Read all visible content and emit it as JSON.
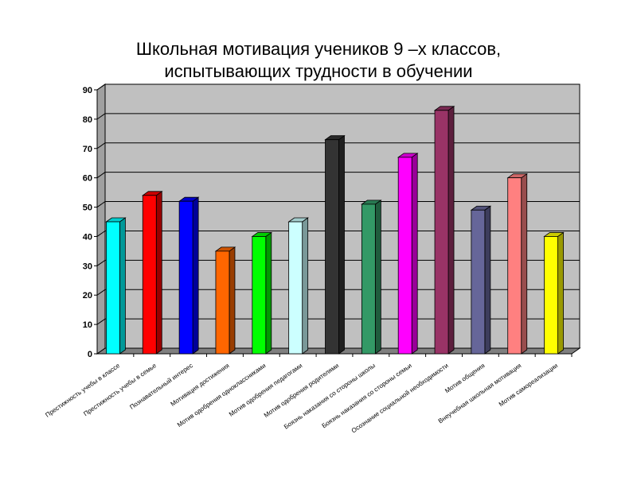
{
  "chart_data": {
    "type": "bar",
    "title_line1": "Школьная мотивация учеников 9 –х классов,",
    "title_line2": "испытывающих трудности в обучении",
    "xlabel": "",
    "ylabel": "",
    "ylim": [
      0,
      90
    ],
    "yticks": [
      "0",
      "10",
      "20",
      "30",
      "40",
      "50",
      "60",
      "70",
      "80",
      "90"
    ],
    "grid": true,
    "categories": [
      "Престижность учебы в классе",
      "Престижность учебы в семье",
      "Познавательный интерес",
      "Мотивация достижения",
      "Мотив одобрения одноклассниками",
      "Мотив одобрения педагогами",
      "Мотив одобрения родителями",
      "Боязнь наказания со стороны школы",
      "Боязнь наказания со стороны семьи",
      "Осознание социальной необходимости",
      "Мотив общения",
      "Внеучебная школьная мотивация",
      "Мотив самореализации"
    ],
    "values": [
      45,
      54,
      52,
      35,
      40,
      45,
      73,
      51,
      67,
      83,
      49,
      60,
      40
    ],
    "colors": [
      "#00ffff",
      "#ff0000",
      "#0000ff",
      "#ff6600",
      "#00ff00",
      "#ccffff",
      "#333333",
      "#339966",
      "#ff00ff",
      "#993366",
      "#666699",
      "#ff8080",
      "#ffff00"
    ]
  }
}
